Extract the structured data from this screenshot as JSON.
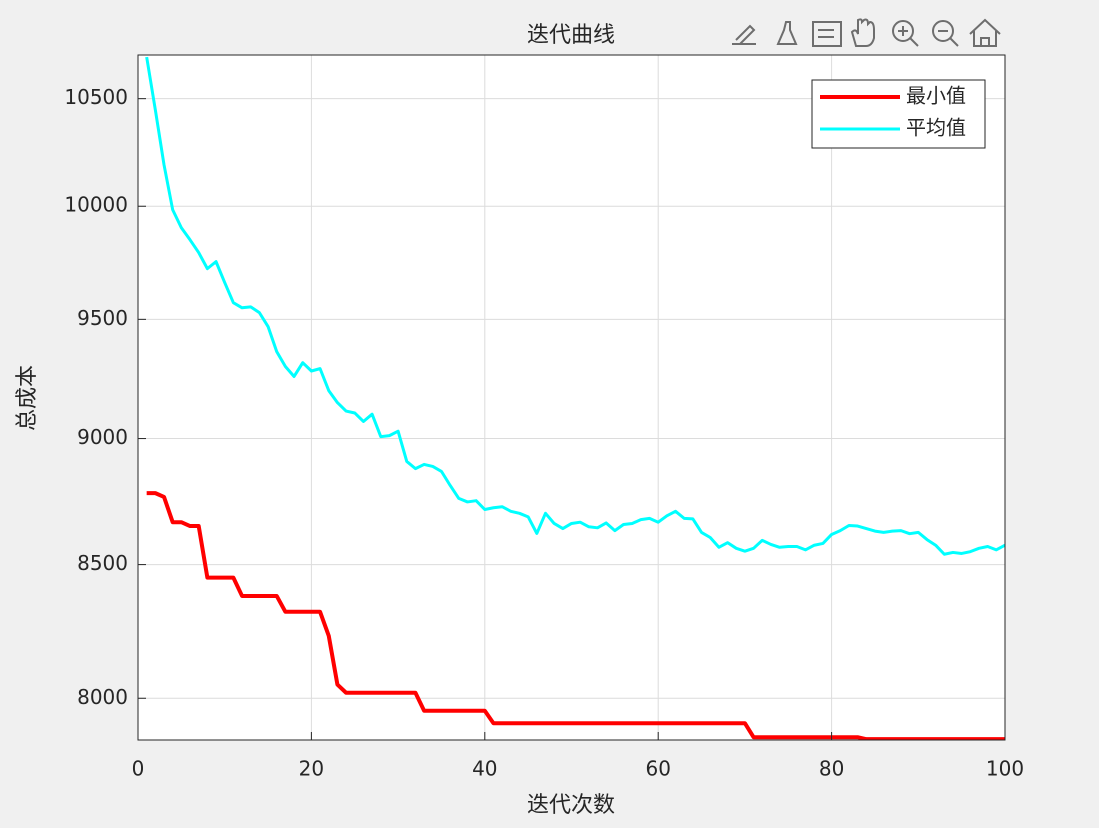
{
  "chart_data": {
    "type": "line",
    "title": "迭代曲线",
    "x_label": "迭代次数",
    "y_label": "总成本",
    "x": [
      1,
      2,
      3,
      4,
      5,
      6,
      7,
      8,
      9,
      10,
      11,
      12,
      13,
      14,
      15,
      16,
      17,
      18,
      19,
      20,
      21,
      22,
      23,
      24,
      25,
      26,
      27,
      28,
      29,
      30,
      31,
      32,
      33,
      34,
      35,
      36,
      37,
      38,
      39,
      40,
      41,
      42,
      43,
      44,
      45,
      46,
      47,
      48,
      49,
      50,
      51,
      52,
      53,
      54,
      55,
      56,
      57,
      58,
      59,
      60,
      61,
      62,
      63,
      64,
      65,
      66,
      67,
      68,
      69,
      70,
      71,
      72,
      73,
      74,
      75,
      76,
      77,
      78,
      79,
      80,
      81,
      82,
      83,
      84,
      85,
      86,
      87,
      88,
      89,
      90,
      91,
      92,
      93,
      94,
      95,
      96,
      97,
      98,
      99,
      100
    ],
    "series": [
      {
        "name": "最小值",
        "color": "#ff0000",
        "width": 4,
        "values": [
          8780,
          8780,
          8765,
          8665,
          8665,
          8650,
          8650,
          8450,
          8450,
          8450,
          8450,
          8380,
          8380,
          8380,
          8380,
          8380,
          8320,
          8320,
          8320,
          8320,
          8320,
          8230,
          8050,
          8020,
          8020,
          8020,
          8020,
          8020,
          8020,
          8020,
          8020,
          8020,
          7955,
          7955,
          7955,
          7955,
          7955,
          7955,
          7955,
          7955,
          7910,
          7910,
          7910,
          7910,
          7910,
          7910,
          7910,
          7910,
          7910,
          7910,
          7910,
          7910,
          7910,
          7910,
          7910,
          7910,
          7910,
          7910,
          7910,
          7910,
          7910,
          7910,
          7910,
          7910,
          7910,
          7910,
          7910,
          7910,
          7910,
          7910,
          7860,
          7860,
          7860,
          7860,
          7860,
          7860,
          7860,
          7860,
          7860,
          7860,
          7860,
          7860,
          7860,
          7853,
          7853,
          7853,
          7853,
          7853,
          7853,
          7853,
          7853,
          7853,
          7853,
          7853,
          7853,
          7853,
          7853,
          7853,
          7853,
          7853
        ]
      },
      {
        "name": "平均值",
        "color": "#00ffff",
        "width": 3,
        "values": [
          10700,
          10447,
          10190,
          9984,
          9903,
          9849,
          9792,
          9721,
          9752,
          9660,
          9572,
          9550,
          9554,
          9529,
          9469,
          9362,
          9299,
          9257,
          9315,
          9280,
          9290,
          9198,
          9148,
          9113,
          9105,
          9070,
          9100,
          9008,
          9012,
          9030,
          8907,
          8878,
          8895,
          8887,
          8867,
          8811,
          8759,
          8745,
          8750,
          8715,
          8722,
          8726,
          8708,
          8700,
          8686,
          8621,
          8700,
          8660,
          8640,
          8660,
          8665,
          8647,
          8643,
          8662,
          8632,
          8656,
          8660,
          8675,
          8680,
          8665,
          8690,
          8708,
          8680,
          8678,
          8625,
          8605,
          8567,
          8585,
          8563,
          8552,
          8563,
          8594,
          8578,
          8567,
          8570,
          8570,
          8557,
          8575,
          8582,
          8617,
          8632,
          8652,
          8650,
          8640,
          8630,
          8625,
          8630,
          8632,
          8620,
          8625,
          8597,
          8575,
          8540,
          8547,
          8543,
          8550,
          8563,
          8570,
          8557,
          8575
        ]
      }
    ],
    "xlim": [
      0,
      100
    ],
    "xticks": [
      0,
      20,
      40,
      60,
      80,
      100
    ],
    "ylim": [
      7850,
      10710
    ],
    "yticks": [
      8000,
      8500,
      9000,
      9500,
      10000,
      10500
    ],
    "yscale": "log",
    "grid": true,
    "legend": "northeast"
  }
}
